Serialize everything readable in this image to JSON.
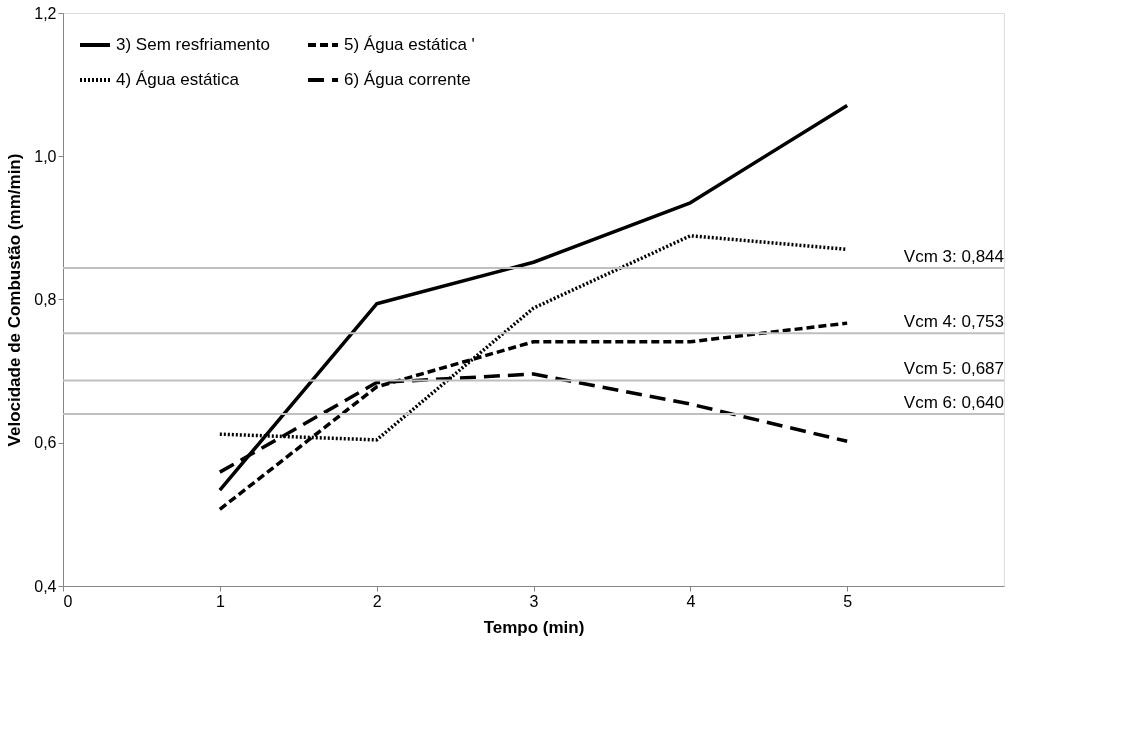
{
  "chart_data": {
    "type": "line",
    "xlabel": "Tempo (min)",
    "ylabel": "Velocidade de Combustão (mm/min)",
    "x": [
      1,
      2,
      3,
      4,
      5
    ],
    "series": [
      {
        "name": "3) Sem resfriamento",
        "color": "#000000",
        "line_style": "solid",
        "values": [
          0.534,
          0.794,
          0.852,
          0.935,
          1.071
        ]
      },
      {
        "name": "4) Água estática",
        "color": "#000000",
        "line_style": "dotted",
        "values": [
          0.612,
          0.604,
          0.788,
          0.889,
          0.87
        ]
      },
      {
        "name": "5) Água estática '",
        "color": "#000000",
        "line_style": "dashed",
        "values": [
          0.507,
          0.678,
          0.741,
          0.741,
          0.767
        ]
      },
      {
        "name": "6) Água corrente",
        "color": "#000000",
        "line_style": "dashed",
        "values": [
          0.559,
          0.684,
          0.696,
          0.654,
          0.602
        ]
      }
    ],
    "xlim": [
      0,
      6
    ],
    "xticks": [
      0,
      1,
      2,
      3,
      4,
      5
    ],
    "ylim": [
      0.4,
      1.2
    ],
    "yticks": [
      {
        "value": 0.4,
        "label": "0,4"
      },
      {
        "value": 0.6,
        "label": "0,6"
      },
      {
        "value": 0.8,
        "label": "0,8"
      },
      {
        "value": 1.0,
        "label": "1,0"
      },
      {
        "value": 1.2,
        "label": "1,2"
      }
    ],
    "ref_lines": [
      {
        "axis": "y",
        "value": 0.844,
        "label": "Vcm 3: 0,844",
        "color": "#bfbfbf"
      },
      {
        "axis": "y",
        "value": 0.753,
        "label": "Vcm 4: 0,753",
        "color": "#bfbfbf"
      },
      {
        "axis": "y",
        "value": 0.687,
        "label": "Vcm 5: 0,687",
        "color": "#bfbfbf"
      },
      {
        "axis": "y",
        "value": 0.64,
        "label": "Vcm 6: 0,640",
        "color": "#bfbfbf"
      }
    ],
    "grid": false,
    "legend": "top left",
    "marker": "none"
  }
}
